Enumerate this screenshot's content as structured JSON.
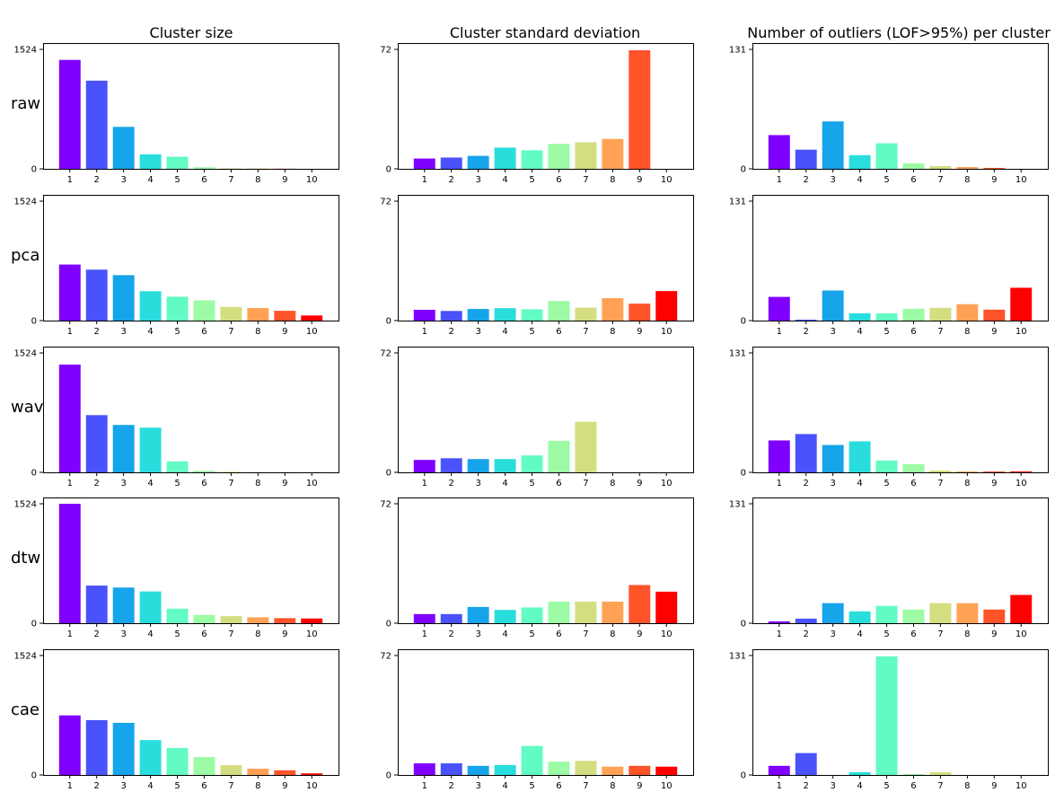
{
  "figure": {
    "categories": [
      "1",
      "2",
      "3",
      "4",
      "5",
      "6",
      "7",
      "8",
      "9",
      "10"
    ],
    "colors": [
      "#8000ff",
      "#4a52fb",
      "#16a4ea",
      "#2adddd",
      "#62fbc4",
      "#9cfba4",
      "#d4dd80",
      "#ffa256",
      "#ff532a",
      "#ff0000"
    ],
    "column_titles": [
      "Cluster size",
      "Cluster standard deviation",
      "Number of outliers (LOF>95%) per cluster"
    ],
    "row_labels": [
      "raw",
      "pca",
      "wav",
      "dtw",
      "cae"
    ]
  },
  "chart_data": [
    {
      "type": "bar",
      "row": "raw",
      "column": "Cluster size",
      "title": "Cluster size",
      "ylabel": "raw",
      "ylim": [
        0,
        1524
      ],
      "yticks": [
        "0",
        "1524"
      ],
      "categories": [
        "1",
        "2",
        "3",
        "4",
        "5",
        "6",
        "7",
        "8",
        "9",
        "10"
      ],
      "values": [
        1390,
        1125,
        535,
        185,
        155,
        20,
        5,
        3,
        2,
        0
      ]
    },
    {
      "type": "bar",
      "row": "raw",
      "column": "Cluster standard deviation",
      "title": "Cluster standard deviation",
      "ylim": [
        0,
        72
      ],
      "yticks": [
        "0",
        "72"
      ],
      "categories": [
        "1",
        "2",
        "3",
        "4",
        "5",
        "6",
        "7",
        "8",
        "9",
        "10"
      ],
      "values": [
        6.2,
        6.8,
        7.8,
        12.8,
        11.2,
        15,
        16,
        18,
        71.5,
        0
      ]
    },
    {
      "type": "bar",
      "row": "raw",
      "column": "Number of outliers (LOF>95%) per cluster",
      "title": "Number of outliers (LOF>95%) per cluster",
      "ylim": [
        0,
        131
      ],
      "yticks": [
        "0",
        "131"
      ],
      "categories": [
        "1",
        "2",
        "3",
        "4",
        "5",
        "6",
        "7",
        "8",
        "9",
        "10"
      ],
      "values": [
        37,
        21,
        52,
        15,
        28,
        6,
        3,
        2,
        1,
        0
      ]
    },
    {
      "type": "bar",
      "row": "pca",
      "column": "Cluster size",
      "ylabel": "pca",
      "ylim": [
        0,
        1524
      ],
      "yticks": [
        "0",
        "1524"
      ],
      "categories": [
        "1",
        "2",
        "3",
        "4",
        "5",
        "6",
        "7",
        "8",
        "9",
        "10"
      ],
      "values": [
        715,
        650,
        580,
        375,
        305,
        258,
        175,
        160,
        125,
        65
      ]
    },
    {
      "type": "bar",
      "row": "pca",
      "column": "Cluster standard deviation",
      "ylim": [
        0,
        72
      ],
      "yticks": [
        "0",
        "72"
      ],
      "categories": [
        "1",
        "2",
        "3",
        "4",
        "5",
        "6",
        "7",
        "8",
        "9",
        "10"
      ],
      "values": [
        6.5,
        5.8,
        7,
        7.5,
        6.8,
        11.8,
        7.8,
        13.5,
        10.2,
        17.8
      ]
    },
    {
      "type": "bar",
      "row": "pca",
      "column": "Number of outliers (LOF>95%) per cluster",
      "ylim": [
        0,
        131
      ],
      "yticks": [
        "0",
        "131"
      ],
      "categories": [
        "1",
        "2",
        "3",
        "4",
        "5",
        "6",
        "7",
        "8",
        "9",
        "10"
      ],
      "values": [
        26,
        1,
        33,
        8,
        8,
        13,
        14,
        18,
        12,
        36
      ]
    },
    {
      "type": "bar",
      "row": "wav",
      "column": "Cluster size",
      "ylabel": "wav",
      "ylim": [
        0,
        1524
      ],
      "yticks": [
        "0",
        "1524"
      ],
      "categories": [
        "1",
        "2",
        "3",
        "4",
        "5",
        "6",
        "7",
        "8",
        "9",
        "10"
      ],
      "values": [
        1375,
        730,
        605,
        570,
        140,
        20,
        8,
        3,
        2,
        1
      ]
    },
    {
      "type": "bar",
      "row": "wav",
      "column": "Cluster standard deviation",
      "ylim": [
        0,
        72
      ],
      "yticks": [
        "0",
        "72"
      ],
      "categories": [
        "1",
        "2",
        "3",
        "4",
        "5",
        "6",
        "7",
        "8",
        "9",
        "10"
      ],
      "values": [
        7.5,
        8.5,
        8,
        8,
        10.2,
        19,
        30.5,
        0,
        0,
        0
      ]
    },
    {
      "type": "bar",
      "row": "wav",
      "column": "Number of outliers (LOF>95%) per cluster",
      "ylim": [
        0,
        131
      ],
      "yticks": [
        "0",
        "131"
      ],
      "categories": [
        "1",
        "2",
        "3",
        "4",
        "5",
        "6",
        "7",
        "8",
        "9",
        "10"
      ],
      "values": [
        35,
        42,
        30,
        34,
        13,
        9,
        2,
        1,
        1,
        1
      ]
    },
    {
      "type": "bar",
      "row": "dtw",
      "column": "Cluster size",
      "ylabel": "dtw",
      "ylim": [
        0,
        1524
      ],
      "yticks": [
        "0",
        "1524"
      ],
      "categories": [
        "1",
        "2",
        "3",
        "4",
        "5",
        "6",
        "7",
        "8",
        "9",
        "10"
      ],
      "values": [
        1524,
        480,
        455,
        405,
        185,
        105,
        90,
        75,
        65,
        60
      ]
    },
    {
      "type": "bar",
      "row": "dtw",
      "column": "Cluster standard deviation",
      "ylim": [
        0,
        72
      ],
      "yticks": [
        "0",
        "72"
      ],
      "categories": [
        "1",
        "2",
        "3",
        "4",
        "5",
        "6",
        "7",
        "8",
        "9",
        "10"
      ],
      "values": [
        5.5,
        5.5,
        9.8,
        8,
        9.5,
        13,
        13,
        13,
        23,
        19
      ]
    },
    {
      "type": "bar",
      "row": "dtw",
      "column": "Number of outliers (LOF>95%) per cluster",
      "ylim": [
        0,
        131
      ],
      "yticks": [
        "0",
        "131"
      ],
      "categories": [
        "1",
        "2",
        "3",
        "4",
        "5",
        "6",
        "7",
        "8",
        "9",
        "10"
      ],
      "values": [
        2,
        5,
        22,
        13,
        19,
        15,
        22,
        22,
        15,
        31
      ]
    },
    {
      "type": "bar",
      "row": "cae",
      "column": "Cluster size",
      "ylabel": "cae",
      "ylim": [
        0,
        1524
      ],
      "yticks": [
        "0",
        "1524"
      ],
      "categories": [
        "1",
        "2",
        "3",
        "4",
        "5",
        "6",
        "7",
        "8",
        "9",
        "10"
      ],
      "values": [
        760,
        700,
        665,
        445,
        345,
        228,
        125,
        80,
        60,
        20
      ]
    },
    {
      "type": "bar",
      "row": "cae",
      "column": "Cluster standard deviation",
      "ylim": [
        0,
        72
      ],
      "yticks": [
        "0",
        "72"
      ],
      "categories": [
        "1",
        "2",
        "3",
        "4",
        "5",
        "6",
        "7",
        "8",
        "9",
        "10"
      ],
      "values": [
        7,
        7,
        5.5,
        6,
        17.5,
        8,
        8.5,
        5,
        5.5,
        5
      ]
    },
    {
      "type": "bar",
      "row": "cae",
      "column": "Number of outliers (LOF>95%) per cluster",
      "ylim": [
        0,
        131
      ],
      "yticks": [
        "0",
        "131"
      ],
      "categories": [
        "1",
        "2",
        "3",
        "4",
        "5",
        "6",
        "7",
        "8",
        "9",
        "10"
      ],
      "values": [
        10,
        24,
        0,
        3,
        130,
        1,
        3,
        0,
        0,
        0
      ]
    }
  ]
}
